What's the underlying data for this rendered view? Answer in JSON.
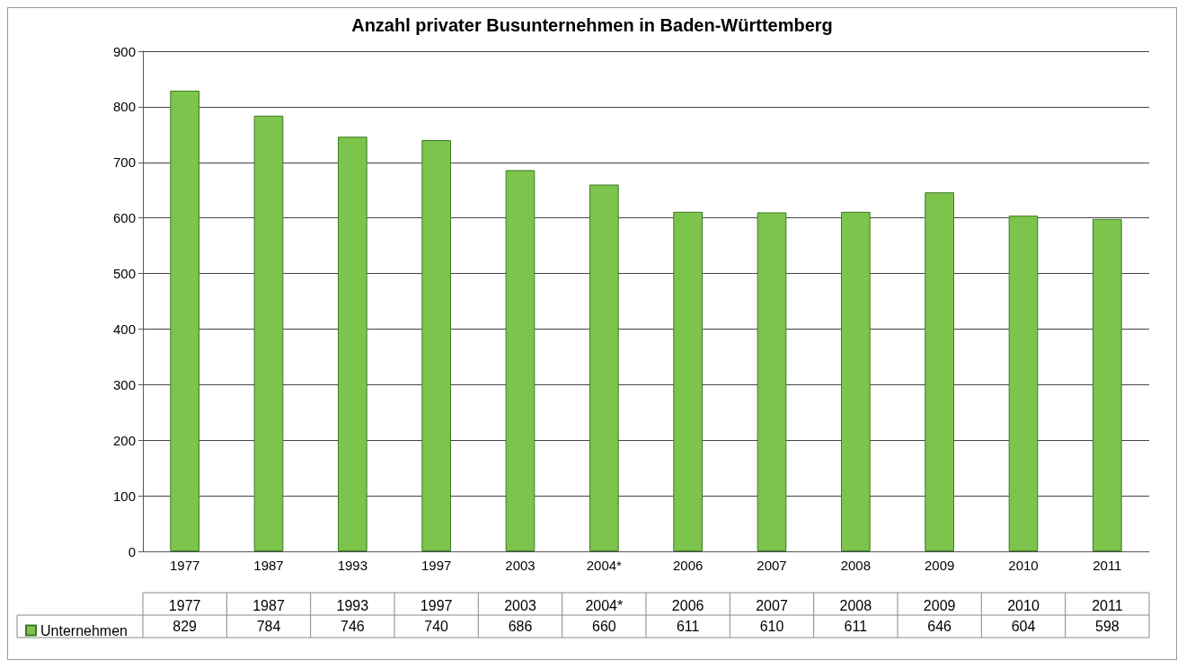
{
  "chart_data": {
    "type": "bar",
    "title": "Anzahl privater Busunternehmen in Baden-Württemberg",
    "categories": [
      "1977",
      "1987",
      "1993",
      "1997",
      "2003",
      "2004*",
      "2006",
      "2007",
      "2008",
      "2009",
      "2010",
      "2011"
    ],
    "series": [
      {
        "name": "Unternehmen",
        "color": "#7cc44c",
        "values": [
          829,
          784,
          746,
          740,
          686,
          660,
          611,
          610,
          611,
          646,
          604,
          598
        ]
      }
    ],
    "ylim": [
      0,
      900
    ],
    "yticks": [
      0,
      100,
      200,
      300,
      400,
      500,
      600,
      700,
      800,
      900
    ],
    "grid": "y",
    "data_labels": true,
    "legend": "bottom"
  }
}
